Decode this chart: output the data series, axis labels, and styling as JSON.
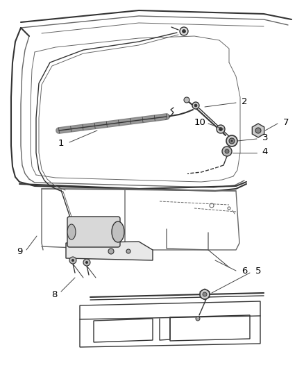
{
  "bg_color": "#ffffff",
  "line_color": "#666666",
  "dark_line": "#333333",
  "fig_width": 4.38,
  "fig_height": 5.33,
  "dpi": 100
}
